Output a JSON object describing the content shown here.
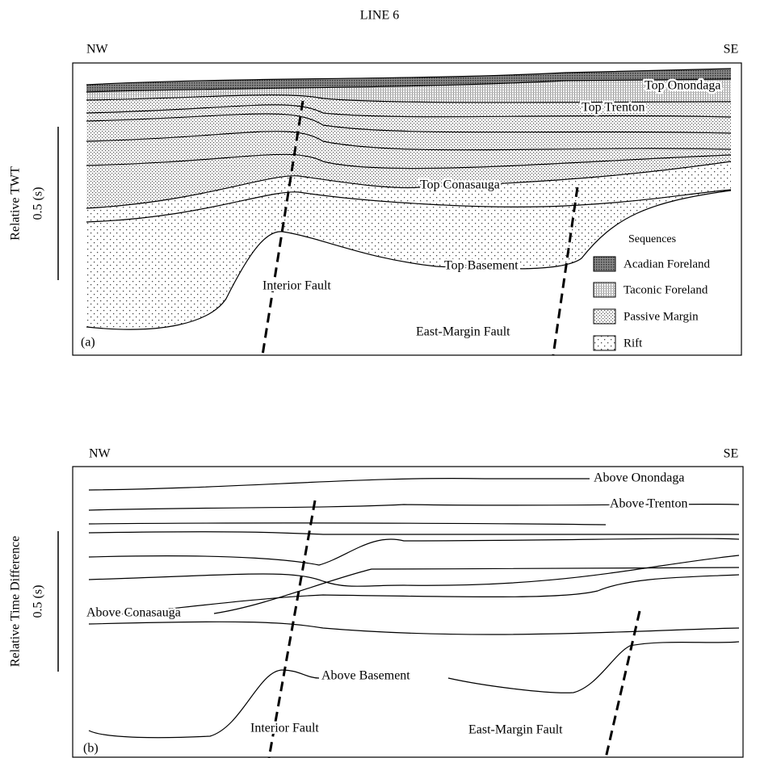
{
  "title": "LINE 6",
  "panel_a": {
    "label": "(a)",
    "left_end": "NW",
    "right_end": "SE",
    "axis_label": "Relative TWT",
    "scale_label": "0.5 (s)",
    "horizons": [
      "Top Onondaga",
      "Top Trenton",
      "Top Conasauga",
      "Top Basement"
    ],
    "faults": [
      "Interior Fault",
      "East-Margin Fault"
    ],
    "legend": {
      "title": "Sequences",
      "items": [
        "Acadian Foreland",
        "Taconic Foreland",
        "Passive Margin",
        "Rift"
      ]
    }
  },
  "panel_b": {
    "label": "(b)",
    "left_end": "NW",
    "right_end": "SE",
    "axis_label": "Relative Time Difference",
    "scale_label": "0.5 (s)",
    "horizons": [
      "Above Onondaga",
      "Above Trenton",
      "Above Conasauga",
      "Above Basement"
    ],
    "faults": [
      "Interior Fault",
      "East-Margin Fault"
    ]
  }
}
